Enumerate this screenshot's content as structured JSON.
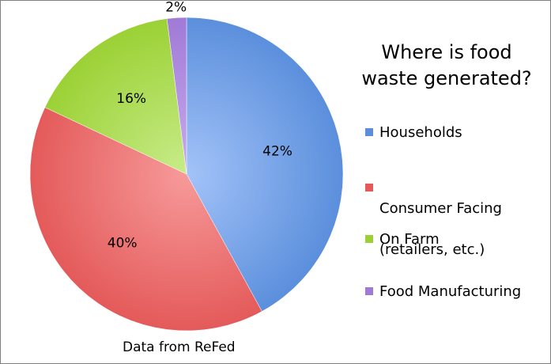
{
  "chart_data": {
    "type": "pie",
    "title": "Where is food waste generated?",
    "title_lines": [
      "Where is food",
      "waste generated?"
    ],
    "source_note": "Data from ReFed",
    "legend_position": "right",
    "slices": [
      {
        "label": "Households",
        "legend_lines": [
          "Households"
        ],
        "value": 42,
        "display": "42%",
        "color": "#5b8fdc",
        "light": "#a3c3f8"
      },
      {
        "label": "Consumer Facing (retailers, etc.)",
        "legend_lines": [
          "Consumer Facing",
          "(retailers, etc.)"
        ],
        "value": 40,
        "display": "40%",
        "color": "#e45a5a",
        "light": "#f79a9a"
      },
      {
        "label": "On Farm",
        "legend_lines": [
          "On Farm"
        ],
        "value": 16,
        "display": "16%",
        "color": "#9bd135",
        "light": "#c8ec8a"
      },
      {
        "label": "Food Manufacturing",
        "legend_lines": [
          "Food Manufacturing"
        ],
        "value": 2,
        "display": "2%",
        "color": "#a07ad6",
        "light": "#c8acee"
      }
    ]
  }
}
